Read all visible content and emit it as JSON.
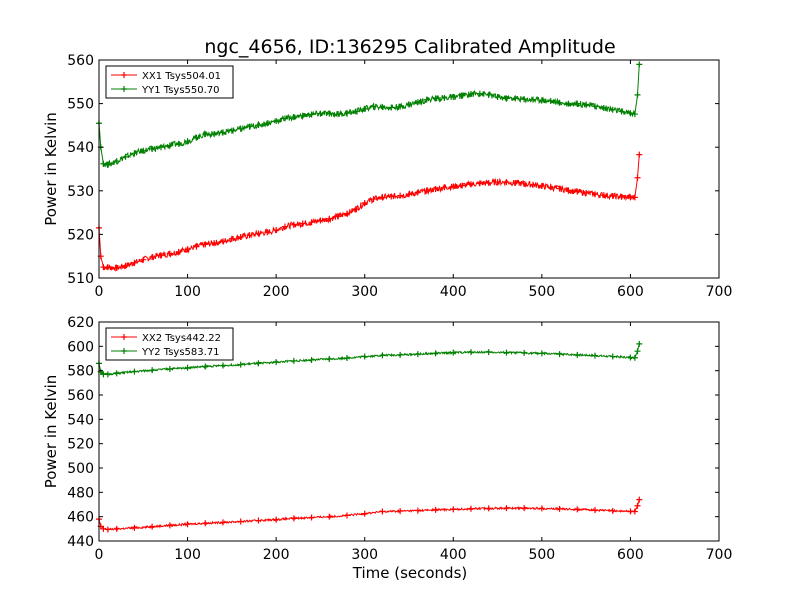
{
  "figure": {
    "title": "ngc_4656, ID:136295 Calibrated Amplitude",
    "xlabel": "Time (seconds)"
  },
  "colors": {
    "xx": "#ff0000",
    "yy": "#008000",
    "axes": "#000000",
    "background": "#ffffff"
  },
  "chart_data": [
    {
      "type": "line",
      "marker": "plus",
      "title": "ngc_4656, ID:136295 Calibrated Amplitude",
      "xlabel": "",
      "ylabel": "Power in Kelvin",
      "xlim": [
        0,
        700
      ],
      "ylim": [
        510,
        560
      ],
      "xticks": [
        0,
        100,
        200,
        300,
        400,
        500,
        600,
        700
      ],
      "yticks": [
        510,
        520,
        530,
        540,
        550,
        560
      ],
      "grid": false,
      "legend_position": "top-left",
      "series": [
        {
          "name": "XX1 Tsys504.01",
          "color": "#ff0000",
          "x": [
            0,
            2,
            5,
            10,
            20,
            30,
            40,
            50,
            60,
            70,
            80,
            90,
            100,
            110,
            120,
            130,
            140,
            150,
            160,
            170,
            180,
            190,
            200,
            210,
            220,
            230,
            240,
            250,
            260,
            270,
            280,
            290,
            300,
            310,
            320,
            330,
            340,
            350,
            360,
            370,
            380,
            390,
            400,
            410,
            420,
            430,
            440,
            450,
            460,
            470,
            480,
            490,
            500,
            510,
            520,
            530,
            540,
            550,
            560,
            570,
            580,
            590,
            600,
            605,
            608,
            610
          ],
          "y": [
            521.5,
            515,
            512.5,
            512.5,
            512.3,
            512.8,
            513.5,
            514.2,
            514.8,
            515.2,
            515.6,
            516.0,
            516.6,
            517.2,
            517.7,
            518.0,
            518.4,
            519.0,
            519.4,
            519.8,
            520.2,
            520.5,
            521.0,
            521.8,
            522.2,
            522.5,
            522.8,
            523.2,
            523.6,
            524.1,
            524.8,
            525.8,
            527.2,
            528.1,
            528.5,
            528.7,
            528.9,
            529.2,
            529.6,
            530.0,
            530.4,
            530.8,
            531.0,
            531.2,
            531.5,
            531.7,
            531.8,
            532.0,
            532.0,
            531.8,
            531.6,
            531.4,
            531.1,
            530.8,
            530.5,
            530.1,
            529.8,
            529.5,
            529.2,
            529.0,
            528.8,
            528.6,
            528.5,
            528.5,
            533.0,
            538.3
          ]
        },
        {
          "name": "YY1 Tsys550.70",
          "color": "#008000",
          "x": [
            0,
            2,
            5,
            10,
            20,
            30,
            40,
            50,
            60,
            70,
            80,
            90,
            100,
            110,
            120,
            130,
            140,
            150,
            160,
            170,
            180,
            190,
            200,
            210,
            220,
            230,
            240,
            250,
            260,
            270,
            280,
            290,
            300,
            310,
            320,
            330,
            340,
            350,
            360,
            370,
            380,
            390,
            400,
            410,
            420,
            430,
            440,
            450,
            460,
            470,
            480,
            490,
            500,
            510,
            520,
            530,
            540,
            550,
            560,
            570,
            580,
            590,
            600,
            605,
            608,
            610
          ],
          "y": [
            545.5,
            540,
            536.2,
            536.0,
            536.8,
            537.8,
            538.6,
            539.2,
            539.6,
            540.0,
            540.4,
            540.8,
            541.4,
            542.2,
            543.0,
            543.0,
            543.4,
            543.8,
            544.2,
            544.7,
            545.1,
            545.5,
            546.0,
            546.6,
            546.9,
            547.2,
            547.5,
            547.7,
            547.7,
            547.6,
            547.8,
            548.2,
            548.8,
            549.3,
            549.2,
            549.1,
            549.3,
            549.8,
            550.3,
            550.9,
            551.2,
            551.3,
            551.5,
            551.8,
            552.2,
            552.3,
            552.0,
            551.5,
            551.2,
            551.2,
            551.0,
            550.9,
            550.8,
            550.6,
            550.2,
            550.0,
            550.0,
            549.8,
            549.4,
            549.0,
            548.6,
            548.2,
            547.8,
            547.6,
            552.0,
            559.0
          ]
        }
      ]
    },
    {
      "type": "line",
      "marker": "plus",
      "title": "",
      "xlabel": "Time (seconds)",
      "ylabel": "Power in Kelvin",
      "xlim": [
        0,
        700
      ],
      "ylim": [
        440,
        620
      ],
      "xticks": [
        0,
        100,
        200,
        300,
        400,
        500,
        600,
        700
      ],
      "yticks": [
        440,
        460,
        480,
        500,
        520,
        540,
        560,
        580,
        600,
        620
      ],
      "grid": false,
      "legend_position": "top-left",
      "series": [
        {
          "name": "XX2 Tsys442.22",
          "color": "#ff0000",
          "x": [
            0,
            2,
            5,
            10,
            20,
            40,
            60,
            80,
            100,
            120,
            140,
            160,
            180,
            200,
            220,
            240,
            260,
            280,
            300,
            320,
            340,
            360,
            380,
            400,
            420,
            440,
            460,
            480,
            500,
            520,
            540,
            560,
            580,
            600,
            605,
            608,
            610
          ],
          "y": [
            458,
            452,
            450,
            449.5,
            450,
            450.8,
            451.8,
            452.8,
            453.8,
            454.6,
            455.3,
            456.0,
            456.8,
            457.6,
            458.6,
            459.3,
            460.0,
            461.0,
            462.5,
            464.2,
            464.6,
            465.0,
            465.6,
            466.0,
            466.5,
            466.8,
            467.0,
            467.0,
            466.8,
            466.4,
            466.0,
            465.4,
            464.8,
            464.3,
            464.2,
            469.0,
            474.0
          ]
        },
        {
          "name": "YY2 Tsys583.71",
          "color": "#008000",
          "x": [
            0,
            2,
            5,
            10,
            20,
            40,
            60,
            80,
            100,
            120,
            140,
            160,
            180,
            200,
            220,
            240,
            260,
            280,
            300,
            320,
            340,
            360,
            380,
            400,
            420,
            440,
            460,
            480,
            500,
            520,
            540,
            560,
            580,
            600,
            605,
            608,
            610
          ],
          "y": [
            586,
            579,
            577,
            577,
            577.8,
            579.2,
            580.4,
            581.4,
            582.4,
            583.4,
            584.2,
            585.0,
            586.0,
            587.0,
            588.0,
            588.8,
            589.6,
            590.4,
            591.6,
            592.6,
            593.0,
            593.6,
            594.2,
            594.8,
            595.2,
            595.2,
            594.8,
            594.6,
            594.2,
            593.6,
            593.0,
            592.4,
            591.6,
            590.8,
            590.6,
            596.0,
            602.0
          ]
        }
      ]
    }
  ]
}
